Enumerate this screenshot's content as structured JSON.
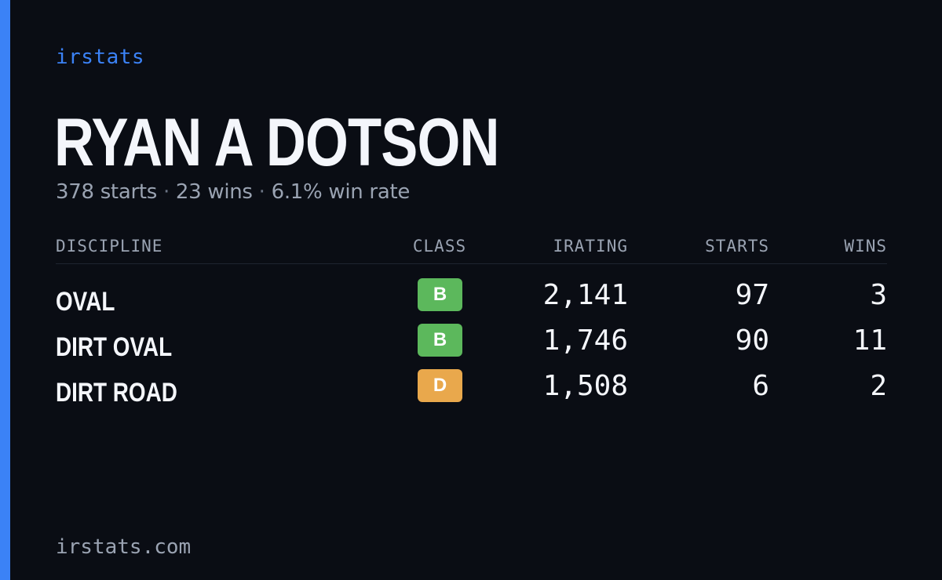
{
  "brand": "irstats",
  "driver": {
    "name": "RYAN A DOTSON",
    "summary": {
      "starts": "378 starts",
      "wins": "23 wins",
      "win_rate": "6.1% win rate",
      "separator": "·"
    }
  },
  "table": {
    "headers": {
      "discipline": "DISCIPLINE",
      "class": "CLASS",
      "irating": "IRATING",
      "starts": "STARTS",
      "wins": "WINS"
    },
    "rows": [
      {
        "discipline": "OVAL",
        "class": "B",
        "irating": "2,141",
        "starts": "97",
        "wins": "3"
      },
      {
        "discipline": "DIRT OVAL",
        "class": "B",
        "irating": "1,746",
        "starts": "90",
        "wins": "11"
      },
      {
        "discipline": "DIRT ROAD",
        "class": "D",
        "irating": "1,508",
        "starts": "6",
        "wins": "2"
      }
    ]
  },
  "footer": {
    "url": "irstats.com"
  },
  "colors": {
    "background": "#0a0d14",
    "accent": "#3b82f6",
    "class_b": "#5cb85c",
    "class_d": "#e9a84c",
    "muted_text": "#9aa3b2"
  }
}
